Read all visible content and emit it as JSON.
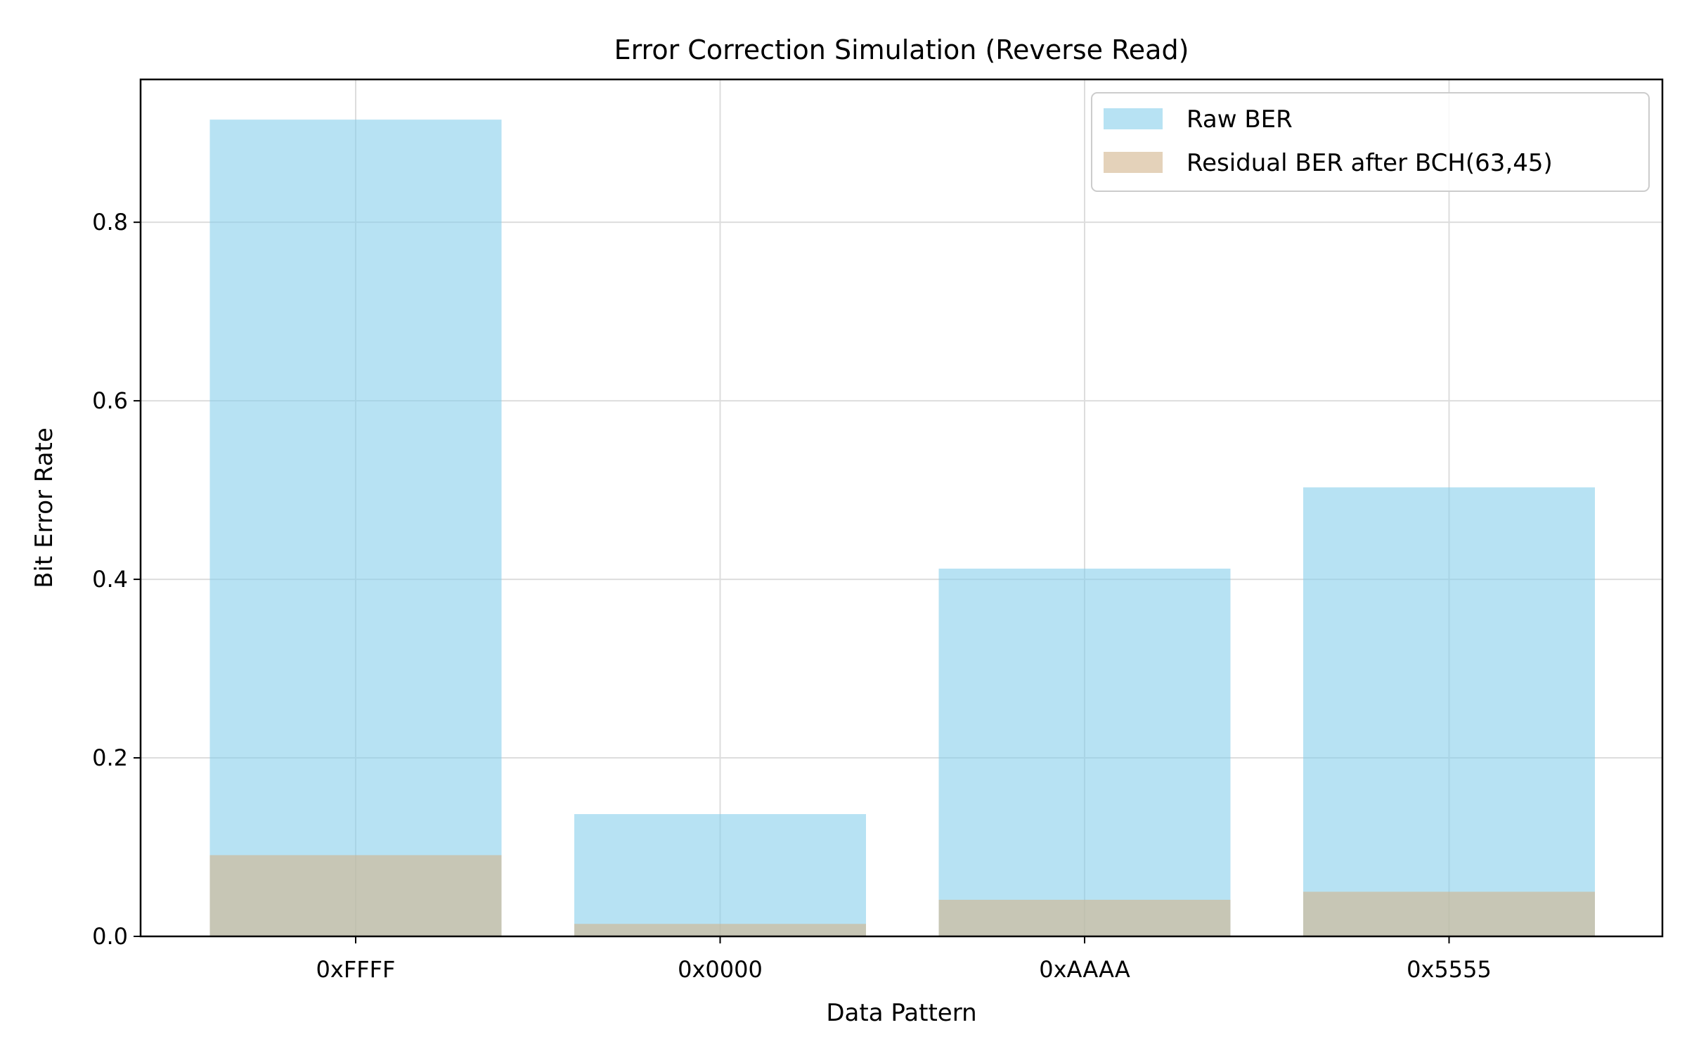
{
  "chart_data": {
    "type": "bar",
    "title": "Error Correction Simulation (Reverse Read)",
    "xlabel": "Data Pattern",
    "ylabel": "Bit Error Rate",
    "categories": [
      "0xFFFF",
      "0x0000",
      "0xAAAA",
      "0x5555"
    ],
    "series": [
      {
        "name": "Raw BER",
        "values": [
          0.915,
          0.137,
          0.412,
          0.503
        ],
        "color": "#87ceeb",
        "opacity": 0.6
      },
      {
        "name": "Residual BER after BCH(63,45)",
        "values": [
          0.091,
          0.014,
          0.041,
          0.05
        ],
        "color": "#d2b48c",
        "opacity": 0.6
      }
    ],
    "ylim": [
      0,
      0.96
    ],
    "yticks": [
      0.0,
      0.2,
      0.4,
      0.6,
      0.8
    ],
    "ytick_labels": [
      "0.0",
      "0.2",
      "0.4",
      "0.6",
      "0.8"
    ],
    "grid": true,
    "legend_position": "top-right",
    "overlaid": true
  }
}
